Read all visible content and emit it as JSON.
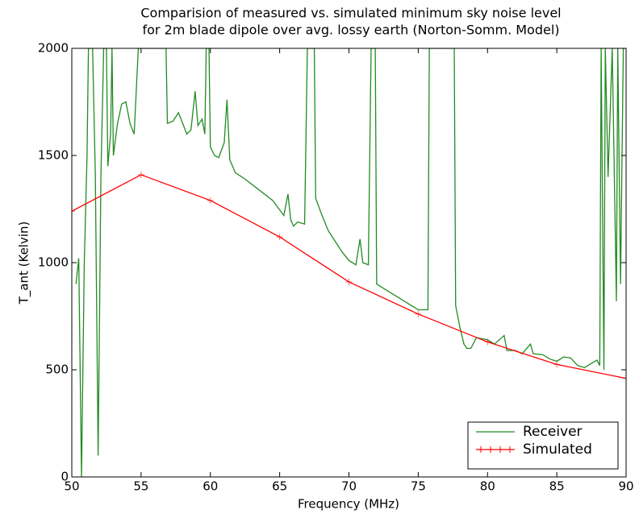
{
  "chart_data": {
    "type": "line",
    "title": [
      "Comparision of measured vs. simulated minimum sky noise level",
      "for 2m blade dipole over avg. lossy earth (Norton-Somm. Model)"
    ],
    "xlabel": "Frequency (MHz)",
    "ylabel": "T_ant (Kelvin)",
    "xlim": [
      50,
      90
    ],
    "ylim": [
      0,
      2000
    ],
    "xticks": [
      50,
      55,
      60,
      65,
      70,
      75,
      80,
      85,
      90
    ],
    "yticks": [
      0,
      500,
      1000,
      1500,
      2000
    ],
    "grid": false,
    "legend": "lower right",
    "series": [
      {
        "name": "Receiver",
        "color": "#228b22",
        "marker": "none",
        "x": [
          50.3,
          50.5,
          50.7,
          50.9,
          51.1,
          51.2,
          51.5,
          51.7,
          51.9,
          52.1,
          52.3,
          52.5,
          52.6,
          52.8,
          52.9,
          53.0,
          53.3,
          53.6,
          53.9,
          54.2,
          54.5,
          54.8,
          55.5,
          56.8,
          56.9,
          57.3,
          57.7,
          58.0,
          58.3,
          58.6,
          58.9,
          59.1,
          59.4,
          59.6,
          59.7,
          59.9,
          60.0,
          60.3,
          60.6,
          61.0,
          61.2,
          61.4,
          61.8,
          62.5,
          63.5,
          64.5,
          65.3,
          65.6,
          65.8,
          66.0,
          66.3,
          66.8,
          67.0,
          67.5,
          67.6,
          68.0,
          68.5,
          69.0,
          69.5,
          70.0,
          70.5,
          70.8,
          71.0,
          71.4,
          71.6,
          71.9,
          72.0,
          72.5,
          73.5,
          74.5,
          75.0,
          75.7,
          75.8,
          77.6,
          77.7,
          78.0,
          78.3,
          78.5,
          78.8,
          79.2,
          80.0,
          80.5,
          81.2,
          81.4,
          82.0,
          82.5,
          83.1,
          83.3,
          84.0,
          84.5,
          85.0,
          85.5,
          86.0,
          86.5,
          87.0,
          87.5,
          87.9,
          88.1,
          88.2,
          88.4,
          88.5,
          88.7,
          89.0,
          89.3,
          89.4,
          89.6,
          89.8,
          90.0
        ],
        "values": [
          900,
          1020,
          0,
          1000,
          1500,
          2000,
          2000,
          1400,
          100,
          1400,
          2000,
          2000,
          1450,
          1600,
          2000,
          1500,
          1650,
          1740,
          1750,
          1650,
          1600,
          2000,
          2000,
          2000,
          1650,
          1660,
          1700,
          1650,
          1600,
          1620,
          1800,
          1640,
          1670,
          1600,
          2000,
          2000,
          1540,
          1500,
          1490,
          1560,
          1760,
          1480,
          1420,
          1390,
          1340,
          1290,
          1220,
          1320,
          1200,
          1170,
          1190,
          1180,
          2000,
          2000,
          1300,
          1230,
          1150,
          1100,
          1050,
          1010,
          990,
          1110,
          1000,
          990,
          2000,
          2000,
          900,
          880,
          840,
          800,
          780,
          780,
          2000,
          2000,
          800,
          700,
          620,
          600,
          600,
          650,
          640,
          620,
          660,
          590,
          590,
          575,
          620,
          575,
          570,
          550,
          540,
          560,
          555,
          520,
          510,
          530,
          545,
          520,
          2000,
          500,
          2000,
          1400,
          2000,
          820,
          2000,
          900,
          2000,
          2000
        ]
      },
      {
        "name": "Simulated",
        "color": "#ff0000",
        "marker": "+",
        "x": [
          50,
          55,
          60,
          65,
          70,
          75,
          80,
          85,
          90
        ],
        "values": [
          1240,
          1410,
          1290,
          1120,
          910,
          760,
          630,
          525,
          460
        ]
      }
    ]
  }
}
